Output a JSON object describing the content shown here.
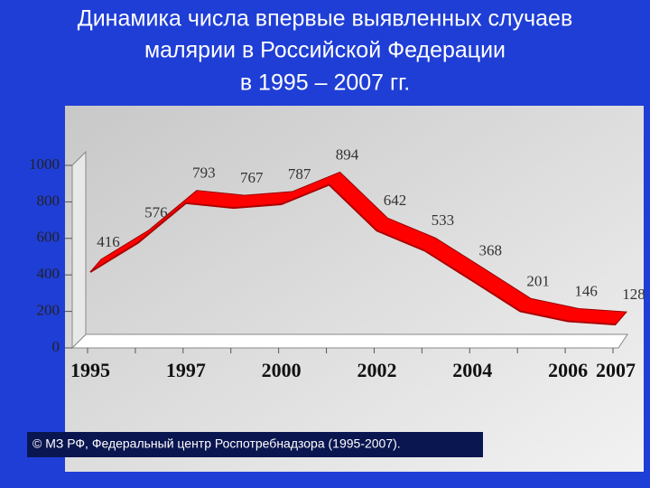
{
  "chart_data": {
    "type": "line",
    "title": [
      "Динамика числа впервые выявленных случаев",
      "малярии в Российской Федерации",
      "в 1995 – 2007 гг."
    ],
    "categories": [
      "1995",
      null,
      "1997",
      null,
      "2000",
      null,
      "2002",
      null,
      "2004",
      null,
      "2006",
      "2007"
    ],
    "values": [
      416,
      576,
      793,
      767,
      787,
      894,
      642,
      533,
      368,
      201,
      146,
      128
    ],
    "color": "#ff0000",
    "ylim": [
      0,
      1000
    ],
    "yticks": [
      0,
      200,
      400,
      600,
      800,
      1000
    ],
    "source": "© МЗ РФ, Федеральный центр Роспотребнадзора (1995-2007)."
  }
}
